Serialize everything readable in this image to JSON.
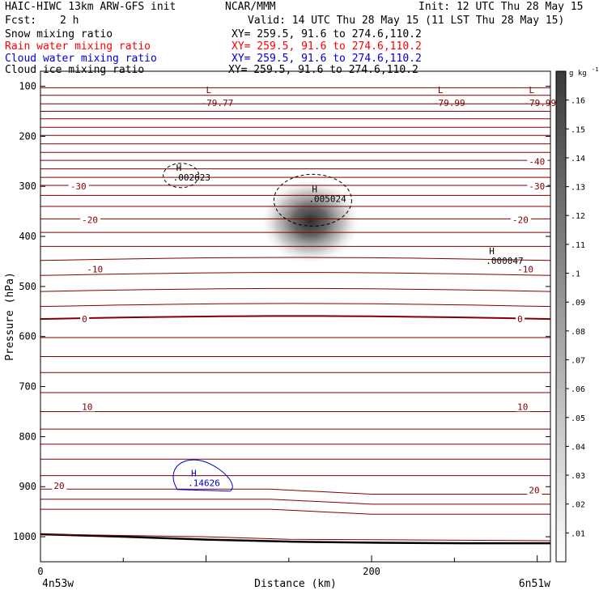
{
  "header": {
    "model": "HAIC-HIWC 13km ARW-GFS init",
    "org": "NCAR/MMM",
    "init": "Init: 12 UTC Thu 28 May 15",
    "fcst_label": "Fcst:",
    "fcst_value": "2 h",
    "valid": "Valid: 14 UTC Thu 28 May 15 (11 LST Thu 28 May 15)",
    "fields": [
      {
        "name": "Snow mixing ratio",
        "xy": "XY= 259.5, 91.6 to 274.6,110.2",
        "color": "#000000"
      },
      {
        "name": "Rain water mixing ratio",
        "xy": "XY= 259.5, 91.6 to 274.6,110.2",
        "color": "#ff0000"
      },
      {
        "name": "Cloud water mixing ratio",
        "xy": "XY= 259.5, 91.6 to 274.6,110.2",
        "color": "#0000cc"
      },
      {
        "name": "Cloud ice mixing ratio",
        "xy": "XY= 259.5, 91.6 to 274.6,110.2",
        "color": "#000000"
      }
    ]
  },
  "chart_data": {
    "type": "heatmap",
    "xlabel": "Distance (km)",
    "ylabel": "Pressure (hPa)",
    "xlim": [
      0,
      300
    ],
    "ylim": [
      1050,
      70
    ],
    "x_ticks": [
      "0",
      "200"
    ],
    "y_ticks": [
      "100",
      "200",
      "300",
      "400",
      "500",
      "600",
      "700",
      "800",
      "900",
      "1000"
    ],
    "x_endpoints": {
      "left": "4n53w",
      "right": "6n51w"
    },
    "colorbar": {
      "unit": "g kg",
      "unit_exp": "-1",
      "ticks": [
        ".01",
        ".02",
        ".03",
        ".04",
        ".05",
        ".06",
        ".07",
        ".08",
        ".09",
        ".1",
        ".11",
        ".12",
        ".13",
        ".14",
        ".15",
        ".16"
      ]
    },
    "temperature_contours": {
      "color": "#800000",
      "labels": [
        {
          "text": "-40",
          "x": 295,
          "p": 250
        },
        {
          "text": "-30",
          "x": 18,
          "p": 300
        },
        {
          "text": "-30",
          "x": 295,
          "p": 300
        },
        {
          "text": "-20",
          "x": 25,
          "p": 367
        },
        {
          "text": "-20",
          "x": 285,
          "p": 367
        },
        {
          "text": "-10",
          "x": 28,
          "p": 465
        },
        {
          "text": "-10",
          "x": 288,
          "p": 465
        },
        {
          "text": "0",
          "x": 25,
          "p": 565
        },
        {
          "text": "0",
          "x": 288,
          "p": 565
        },
        {
          "text": "10",
          "x": 25,
          "p": 740
        },
        {
          "text": "10",
          "x": 288,
          "p": 740
        },
        {
          "text": "20",
          "x": 8,
          "p": 898
        },
        {
          "text": "20",
          "x": 295,
          "p": 907
        }
      ],
      "lows": [
        {
          "text": "L",
          "value": "-79.77",
          "x": 100,
          "p": 88
        },
        {
          "text": "L",
          "value": "-79.99",
          "x": 240,
          "p": 88
        },
        {
          "text": "L",
          "value": "-79.99",
          "x": 295,
          "p": 88
        }
      ]
    },
    "ice_max": [
      {
        "text": "H",
        "value": ".002623",
        "x": 81,
        "p": 275
      },
      {
        "text": "H",
        "value": ".005024",
        "x": 163,
        "p": 318
      },
      {
        "text": "H",
        "value": ".000047",
        "x": 270,
        "p": 442
      }
    ],
    "cloud_water_max": {
      "text": "H",
      "value": ".14626",
      "x": 90,
      "p": 883
    },
    "snow_max": {
      "x": 163,
      "p": 370,
      "value": 0.12
    }
  }
}
